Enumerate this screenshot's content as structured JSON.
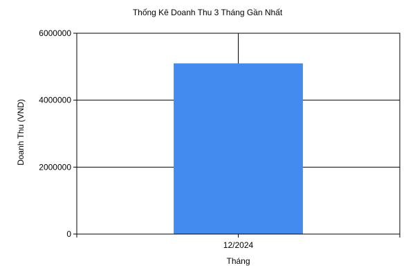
{
  "chart_data": {
    "type": "bar",
    "title": "Thống Kê Doanh Thu 3 Tháng Gần Nhất",
    "xlabel": "Tháng",
    "ylabel": "Doanh Thu (VND)",
    "categories": [
      "12/2024"
    ],
    "values": [
      5100000
    ],
    "ylim": [
      0,
      6000000
    ],
    "yticks": [
      "0",
      "2000000",
      "4000000",
      "6000000"
    ],
    "grid": true,
    "legend": "none",
    "bar_color": "#448BEF",
    "grid_color": "#000000"
  }
}
